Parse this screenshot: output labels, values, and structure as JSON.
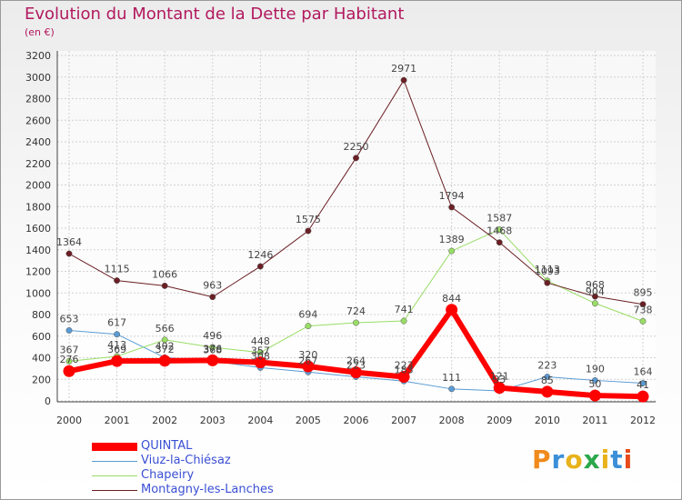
{
  "header": {
    "title": "Evolution du Montant de la Dette par Habitant",
    "unit": "(en €)"
  },
  "brand": "Proxiti",
  "chart_data": {
    "type": "line",
    "title": "Evolution du Montant de la Dette par Habitant",
    "ylabel": "(en €)",
    "xlabel": "",
    "x": [
      "2000",
      "2001",
      "2002",
      "2003",
      "2004",
      "2005",
      "2006",
      "2007",
      "2008",
      "2009",
      "2010",
      "2011",
      "2012"
    ],
    "ylim": [
      0,
      3200
    ],
    "yticks": [
      0,
      200,
      400,
      600,
      800,
      1000,
      1200,
      1400,
      1600,
      1800,
      2000,
      2200,
      2400,
      2600,
      2800,
      3000,
      3200
    ],
    "grid": true,
    "legend_position": "bottom",
    "series": [
      {
        "name": "QUINTAL",
        "color": "#ff0000",
        "width": 6,
        "values": [
          276,
          369,
          372,
          376,
          357,
          320,
          264,
          223,
          844,
          121,
          85,
          50,
          41
        ]
      },
      {
        "name": "Viuz-la-Chiésaz",
        "color": "#5a9bd4",
        "width": 1,
        "values": [
          653,
          617,
          402,
          368,
          308,
          267,
          223,
          183,
          111,
          93,
          223,
          190,
          164
        ]
      },
      {
        "name": "Chapeiry",
        "color": "#99dd66",
        "width": 1,
        "values": [
          367,
          413,
          566,
          496,
          448,
          694,
          724,
          741,
          1389,
          1587,
          1113,
          904,
          738
        ]
      },
      {
        "name": "Montagny-les-Lanches",
        "color": "#6b1f24",
        "width": 1,
        "values": [
          1364,
          1115,
          1066,
          963,
          1246,
          1575,
          2250,
          2971,
          1794,
          1468,
          1093,
          968,
          895
        ]
      }
    ]
  }
}
